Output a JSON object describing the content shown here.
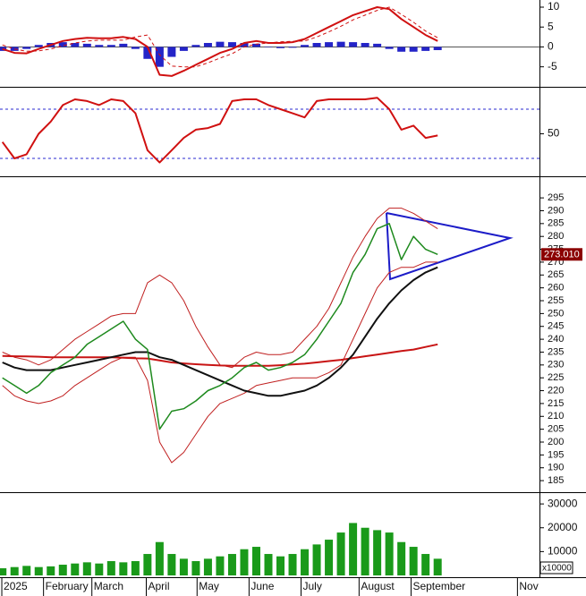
{
  "chart_data": [
    {
      "type": "line",
      "x": [
        1,
        2,
        3,
        4,
        5,
        6,
        7,
        8,
        9,
        10,
        11,
        12,
        13,
        14,
        15,
        16,
        17,
        18,
        19,
        20,
        21,
        22,
        23,
        24,
        25,
        26,
        27,
        28,
        29,
        30,
        31,
        32,
        33,
        34,
        35,
        36,
        37
      ],
      "xlim": [
        0.8,
        45.2
      ],
      "ylim": [
        -9.8,
        11.8
      ],
      "yticks": [
        10,
        5,
        0,
        -5
      ],
      "zero_line": true,
      "series": [
        {
          "type": "bar",
          "color": "#2424c8",
          "values": [
            -1,
            -1,
            -0.5,
            0.5,
            1,
            1.2,
            1,
            0.8,
            0.5,
            0.5,
            0.8,
            -0.5,
            -3,
            -5,
            -2.5,
            -1,
            0.5,
            1,
            1.3,
            1.2,
            1,
            0.8,
            0,
            -0.3,
            -0.2,
            0.5,
            1,
            1.2,
            1.3,
            1.2,
            1,
            0.8,
            -0.5,
            -1.2,
            -1.2,
            -1,
            -0.8
          ]
        },
        {
          "type": "line",
          "color": "#d01010",
          "width": 2,
          "values": [
            -0.5,
            -1.5,
            -1.6,
            -0.5,
            0.5,
            1.5,
            2,
            2.3,
            2.2,
            2.2,
            2.5,
            2,
            0,
            -7,
            -7.3,
            -6,
            -4.5,
            -3,
            -1.5,
            -0.5,
            1,
            1.5,
            1,
            1,
            1.2,
            2,
            3.5,
            5,
            6.5,
            8,
            9,
            10,
            9.5,
            7,
            5,
            3,
            1.5
          ]
        },
        {
          "type": "line",
          "dashed": true,
          "color": "#d01010",
          "width": 1,
          "values": [
            0.5,
            -0.5,
            -1.1,
            -1,
            -0.5,
            0.3,
            1,
            1.5,
            1.7,
            1.7,
            1.7,
            2.5,
            3,
            -2,
            -4.8,
            -5,
            -5,
            -4,
            -2.8,
            -1.7,
            0,
            0.7,
            1,
            1.3,
            1.4,
            1.5,
            2.5,
            3.8,
            5.2,
            6.8,
            8,
            9.2,
            10,
            8.2,
            6.2,
            4,
            2.3
          ]
        }
      ]
    },
    {
      "type": "line",
      "x": [
        1,
        2,
        3,
        4,
        5,
        6,
        7,
        8,
        9,
        10,
        11,
        12,
        13,
        14,
        15,
        16,
        17,
        18,
        19,
        20,
        21,
        22,
        23,
        24,
        25,
        26,
        27,
        28,
        29,
        30,
        31,
        32,
        33,
        34,
        35,
        36,
        37
      ],
      "xlim": [
        0.8,
        45.2
      ],
      "ylim": [
        -0.7,
        106.2
      ],
      "yticks": [
        50
      ],
      "levels": [
        20,
        80
      ],
      "series": [
        {
          "type": "line",
          "color": "#d01010",
          "width": 2,
          "values": [
            40,
            20,
            25,
            50,
            65,
            85,
            92,
            90,
            85,
            92,
            90,
            75,
            30,
            15,
            30,
            45,
            55,
            57,
            62,
            90,
            92,
            92,
            85,
            80,
            75,
            70,
            90,
            92,
            92,
            92,
            92,
            94,
            80,
            55,
            60,
            45,
            48
          ]
        }
      ]
    },
    {
      "type": "line",
      "x": [
        1,
        2,
        3,
        4,
        5,
        6,
        7,
        8,
        9,
        10,
        11,
        12,
        13,
        14,
        15,
        16,
        17,
        18,
        19,
        20,
        21,
        22,
        23,
        24,
        25,
        26,
        27,
        28,
        29,
        30,
        31,
        32,
        33,
        34,
        35,
        36,
        37
      ],
      "xlim": [
        0.8,
        45.2
      ],
      "ylim": [
        181.2,
        302.7
      ],
      "yticks": [
        185,
        190,
        195,
        200,
        205,
        210,
        215,
        220,
        225,
        230,
        235,
        240,
        245,
        250,
        255,
        260,
        265,
        270,
        275,
        280,
        285,
        290,
        295
      ],
      "last_price": {
        "value": 273.01,
        "label": "273.010"
      },
      "series": [
        {
          "type": "line",
          "color": "#c02020",
          "width": 1,
          "values": [
            235,
            233,
            232,
            230,
            232,
            236,
            240,
            243,
            246,
            249,
            250,
            250,
            262,
            265,
            262,
            255,
            245,
            237,
            230,
            229,
            233,
            235,
            234,
            234,
            235,
            240,
            245,
            252,
            262,
            272,
            280,
            287,
            291,
            291,
            289,
            286,
            283
          ]
        },
        {
          "type": "line",
          "color": "#c02020",
          "width": 1,
          "values": [
            222,
            218,
            216,
            215,
            216,
            218,
            222,
            225,
            228,
            231,
            233,
            233,
            224,
            200,
            192,
            196,
            203,
            210,
            215,
            217,
            219,
            222,
            223,
            224,
            225,
            225,
            225,
            227,
            230,
            240,
            250,
            260,
            266,
            268,
            268,
            270,
            270
          ]
        },
        {
          "type": "line",
          "color": "#c81414",
          "width": 2,
          "values": [
            233.5,
            233.4,
            233.3,
            233.2,
            233,
            233,
            233,
            233,
            233,
            233,
            232.8,
            232.6,
            232.5,
            231.8,
            231,
            230.6,
            230.3,
            230,
            229.8,
            229.7,
            229.7,
            229.7,
            229.7,
            229.9,
            230.2,
            230.5,
            231,
            231.5,
            232,
            232.7,
            233.4,
            234,
            234.7,
            235.4,
            236,
            237,
            238
          ]
        },
        {
          "type": "line",
          "color": "#111111",
          "width": 2,
          "values": [
            231,
            229,
            228,
            228,
            228,
            229,
            230,
            231,
            232,
            233,
            234,
            235,
            235,
            233,
            232,
            230,
            228,
            226,
            224,
            222,
            220,
            219,
            218,
            218,
            219,
            220,
            222,
            225,
            229,
            234,
            241,
            248,
            254,
            259,
            263,
            266,
            268
          ]
        },
        {
          "type": "line",
          "color": "#1e8a1e",
          "width": 1.5,
          "values": [
            225,
            222,
            219,
            222,
            227,
            230,
            233,
            238,
            241,
            244,
            247,
            240,
            236,
            205,
            212,
            213,
            216,
            220,
            222,
            225,
            229,
            231,
            228,
            229,
            231,
            234,
            240,
            247,
            254,
            266,
            273,
            283,
            285,
            271,
            280,
            275,
            273.01
          ]
        }
      ]
    },
    {
      "type": "bar",
      "x": [
        1,
        2,
        3,
        4,
        5,
        6,
        7,
        8,
        9,
        10,
        11,
        12,
        13,
        14,
        15,
        16,
        17,
        18,
        19,
        20,
        21,
        22,
        23,
        24,
        25,
        26,
        27,
        28,
        29,
        30,
        31,
        32,
        33,
        34,
        35,
        36,
        37
      ],
      "xlim": [
        0.8,
        45.2
      ],
      "xticks": [
        {
          "value": 0.95,
          "label": "2025"
        },
        {
          "value": 4.4,
          "label": "February"
        },
        {
          "value": 8.4,
          "label": "March"
        },
        {
          "value": 12.9,
          "label": "April"
        },
        {
          "value": 17.1,
          "label": "May"
        },
        {
          "value": 21.4,
          "label": "June"
        },
        {
          "value": 25.7,
          "label": "July"
        },
        {
          "value": 30.5,
          "label": "August"
        },
        {
          "value": 34.8,
          "label": "September"
        },
        {
          "value": 43.6,
          "label": "Nov"
        }
      ],
      "ylim": [
        0,
        33800
      ],
      "yticks": [
        10000,
        20000,
        30000
      ],
      "unit_label": "x10000",
      "color": "#1a9a1a",
      "values": [
        3000,
        3500,
        4000,
        3500,
        3800,
        4500,
        5000,
        5500,
        5000,
        6000,
        5500,
        6000,
        9000,
        14000,
        9000,
        7000,
        6000,
        7000,
        8000,
        9000,
        11000,
        12000,
        9000,
        8000,
        9000,
        11000,
        13000,
        15000,
        18000,
        22000,
        20000,
        19000,
        18000,
        14000,
        12000,
        9000,
        7000
      ]
    }
  ]
}
